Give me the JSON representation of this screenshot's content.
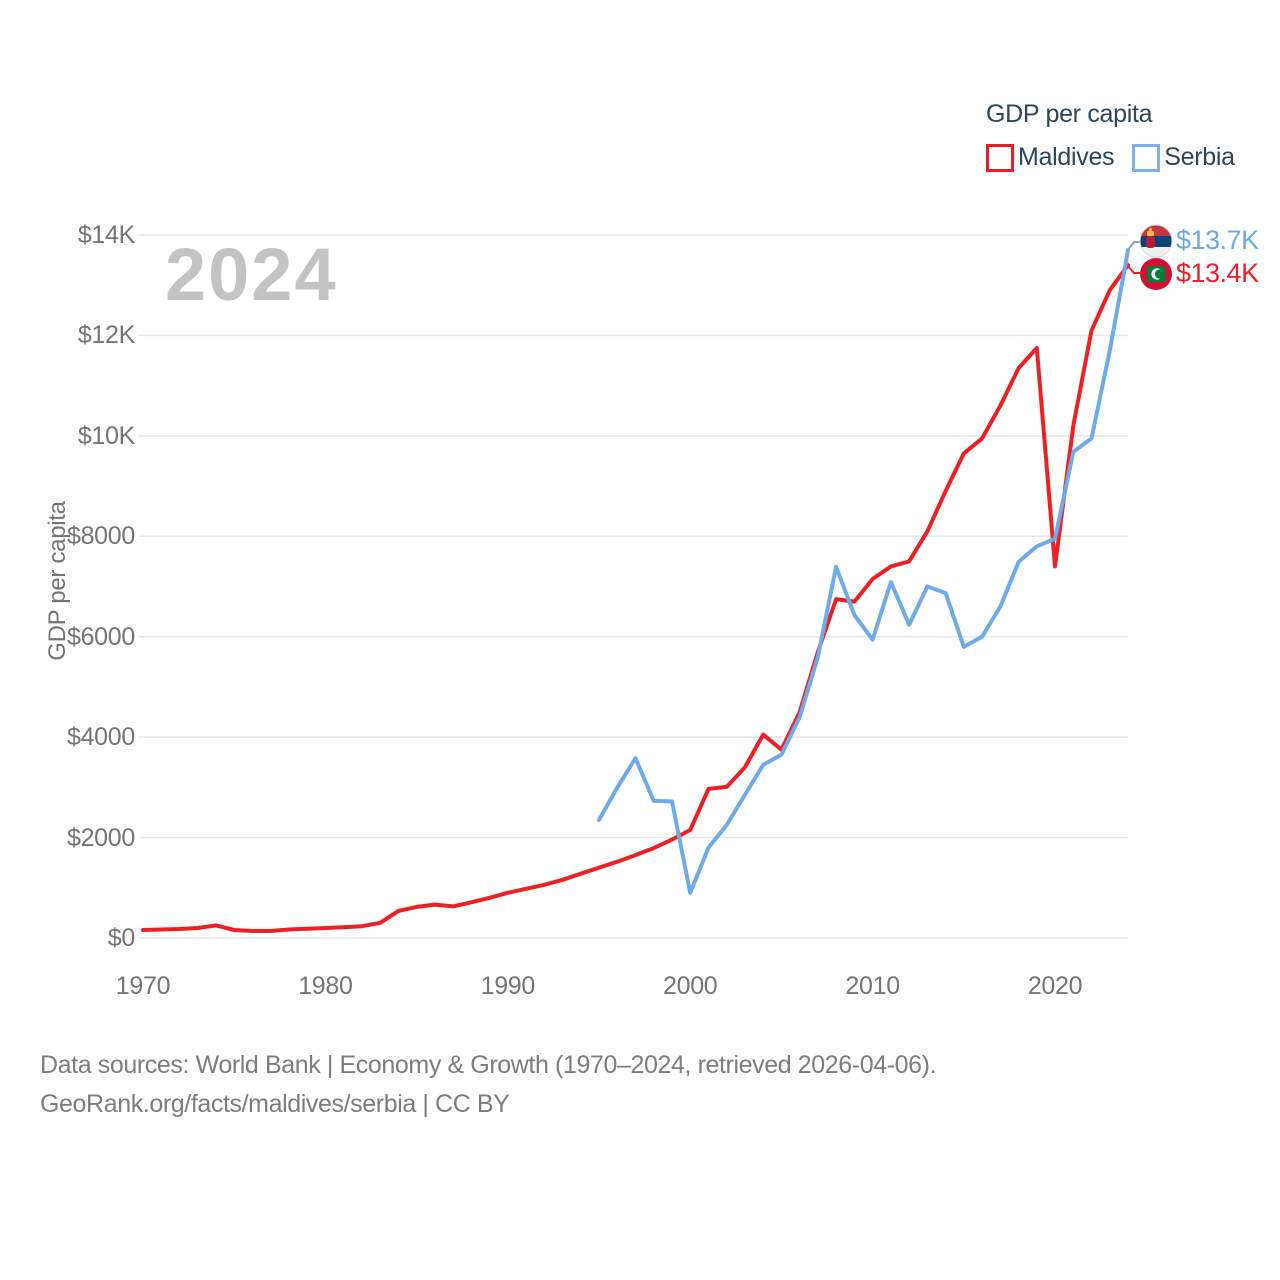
{
  "legend": {
    "title": "GDP per capita",
    "items": [
      {
        "label": "Maldives",
        "color": "#ec1c24"
      },
      {
        "label": "Serbia",
        "color": "#7db3ea"
      }
    ]
  },
  "watermark": {
    "text": "2024"
  },
  "y_axis": {
    "title": "GDP per capita",
    "ticks": [
      {
        "value": 0,
        "label": "$0"
      },
      {
        "value": 2000,
        "label": "$2000"
      },
      {
        "value": 4000,
        "label": "$4000"
      },
      {
        "value": 6000,
        "label": "$6000"
      },
      {
        "value": 8000,
        "label": "$8000"
      },
      {
        "value": 10000,
        "label": "$10K"
      },
      {
        "value": 12000,
        "label": "$12K"
      },
      {
        "value": 14000,
        "label": "$14K"
      }
    ]
  },
  "x_axis": {
    "ticks": [
      {
        "value": 1970,
        "label": "1970"
      },
      {
        "value": 1980,
        "label": "1980"
      },
      {
        "value": 1990,
        "label": "1990"
      },
      {
        "value": 2000,
        "label": "2000"
      },
      {
        "value": 2010,
        "label": "2010"
      },
      {
        "value": 2020,
        "label": "2020"
      }
    ]
  },
  "end_labels": [
    {
      "country": "Serbia",
      "text": "$13.7K",
      "color": "#6aa9e8",
      "flag": "serbia-flag"
    },
    {
      "country": "Maldives",
      "text": "$13.4K",
      "color": "#ee2128",
      "flag": "maldives-flag"
    }
  ],
  "footer": {
    "line1": "Data sources: World Bank | Economy & Growth (1970–2024, retrieved 2026-04-06).",
    "line2": "GeoRank.org/facts/maldives/serbia | CC BY"
  },
  "chart_data": {
    "type": "line",
    "title": "GDP per capita",
    "xlabel": "",
    "ylabel": "GDP per capita",
    "xlim": [
      1970,
      2024
    ],
    "ylim": [
      0,
      14000
    ],
    "grid": true,
    "legend_position": "top-right",
    "series": [
      {
        "name": "Maldives",
        "color": "#ee2024",
        "start_year": 1970,
        "values": [
          160,
          170,
          180,
          200,
          250,
          160,
          140,
          140,
          170,
          185,
          200,
          215,
          235,
          300,
          540,
          620,
          665,
          630,
          710,
          800,
          900,
          980,
          1060,
          1160,
          1280,
          1400,
          1520,
          1650,
          1790,
          1960,
          2150,
          2970,
          3010,
          3400,
          4050,
          3750,
          4500,
          5700,
          6750,
          6700,
          7150,
          7400,
          7500,
          8100,
          8900,
          9650,
          9950,
          10600,
          11350,
          11750,
          7400,
          10200,
          12100,
          12900,
          13400
        ]
      },
      {
        "name": "Serbia",
        "color": "#6fabe8",
        "start_year": 1995,
        "values": [
          2350,
          3000,
          3580,
          2730,
          2720,
          900,
          1800,
          2250,
          2850,
          3450,
          3650,
          4400,
          5600,
          7390,
          6430,
          5940,
          7090,
          6240,
          7000,
          6870,
          5800,
          6000,
          6600,
          7490,
          7800,
          7950,
          9680,
          9950,
          11700,
          13700
        ]
      }
    ]
  }
}
